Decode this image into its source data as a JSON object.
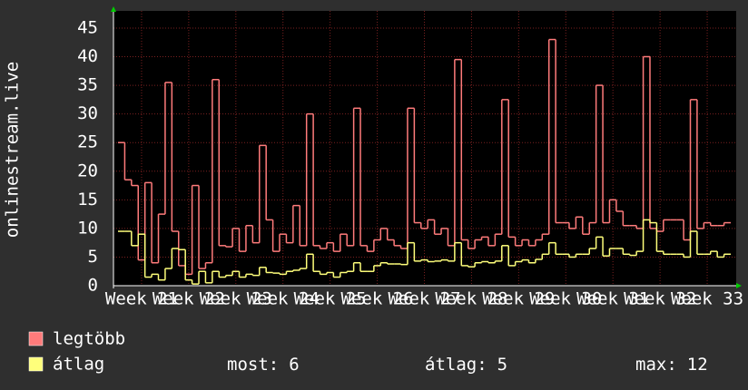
{
  "chart_data": {
    "type": "step",
    "y_label": "onlinestream.live",
    "ylim": [
      0,
      48
    ],
    "yticks": [
      0,
      5,
      10,
      15,
      20,
      25,
      30,
      35,
      40,
      45
    ],
    "xlim": [
      0,
      91
    ],
    "xticks": [
      {
        "value": 3.5,
        "label": "Week 21"
      },
      {
        "value": 10.5,
        "label": "Week 22"
      },
      {
        "value": 17.5,
        "label": "Week 23"
      },
      {
        "value": 24.5,
        "label": "Week 24"
      },
      {
        "value": 31.5,
        "label": "Week 25"
      },
      {
        "value": 38.5,
        "label": "Week 26"
      },
      {
        "value": 45.5,
        "label": "Week 27"
      },
      {
        "value": 52.5,
        "label": "Week 28"
      },
      {
        "value": 59.5,
        "label": "Week 29"
      },
      {
        "value": 66.5,
        "label": "Week 30"
      },
      {
        "value": 73.5,
        "label": "Week 31"
      },
      {
        "value": 80.5,
        "label": "Week 32"
      },
      {
        "value": 87.5,
        "label": "Week 33"
      }
    ],
    "grid": true,
    "series": [
      {
        "name": "legtöbb",
        "color": "#ff7b7b",
        "values": [
          25,
          18.5,
          17.5,
          4.5,
          18,
          4,
          12.5,
          35.5,
          9.5,
          3.5,
          2,
          17.5,
          3,
          4,
          36,
          7,
          6.8,
          10,
          6,
          10.5,
          7.5,
          24.5,
          11.5,
          6,
          9,
          7.5,
          14,
          7,
          30,
          7,
          6.5,
          7.5,
          6,
          9,
          7,
          31,
          7,
          6,
          8,
          10,
          8,
          7,
          6.5,
          31,
          11,
          10,
          11.5,
          9,
          10,
          7,
          39.5,
          8,
          6.5,
          8,
          8.5,
          7,
          9,
          32.5,
          8.5,
          7,
          8,
          7,
          8,
          9,
          43,
          11,
          11,
          10,
          12,
          9,
          11,
          35,
          11,
          15,
          13,
          10.5,
          10.5,
          10,
          40,
          10,
          9.5,
          11.5,
          11.5,
          11.5,
          8,
          32.5,
          10,
          11,
          10.5,
          10.5,
          11
        ]
      },
      {
        "name": "átlag",
        "color": "#ffff7b",
        "values": [
          9.5,
          9.5,
          7,
          9,
          1.5,
          2,
          1,
          3,
          6.5,
          6.3,
          1,
          0.3,
          2.5,
          0.5,
          2.5,
          1.5,
          1.8,
          2.5,
          1.5,
          2,
          1.8,
          3.2,
          2.3,
          2.2,
          2,
          2.5,
          2.7,
          3,
          5.5,
          2.5,
          2,
          2.3,
          1.5,
          2.3,
          2.5,
          4,
          2.5,
          2.5,
          3.5,
          4,
          3.8,
          3.8,
          3.7,
          7.5,
          4.3,
          4.5,
          4.2,
          4.3,
          4.5,
          4.3,
          7.5,
          3.5,
          3.3,
          4,
          4.2,
          4,
          4.3,
          7,
          3.5,
          4.2,
          4.5,
          4,
          4.6,
          5.5,
          7.5,
          5.5,
          5.5,
          5,
          5.5,
          5.5,
          6.5,
          8.5,
          5.2,
          6.5,
          6.5,
          5.5,
          5.3,
          6,
          11.5,
          11,
          6,
          5.5,
          5.5,
          5.5,
          5,
          9.5,
          5.5,
          5.5,
          6,
          5,
          5.5
        ]
      }
    ],
    "stats": [
      {
        "label": "most:",
        "value": 6
      },
      {
        "label": "átlag:",
        "value": 5
      },
      {
        "label": "max:",
        "value": 12
      }
    ]
  }
}
